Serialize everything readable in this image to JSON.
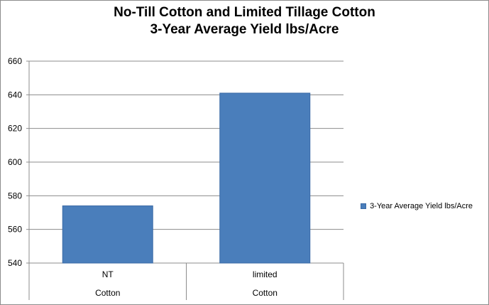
{
  "chart_data": {
    "type": "bar",
    "title_line1": "No-Till Cotton and Limited Tillage Cotton",
    "title_line2": "3-Year Average Yield lbs/Acre",
    "categories": [
      "NT",
      "limited"
    ],
    "category_group": "Cotton",
    "series": [
      {
        "name": "3-Year Average Yield lbs/Acre",
        "values": [
          574,
          641
        ]
      }
    ],
    "ylim": [
      540,
      660
    ],
    "yticks": [
      540,
      560,
      580,
      600,
      620,
      640,
      660
    ],
    "grid": true,
    "legend_position": "right",
    "bar_color": "#4a7ebb"
  }
}
